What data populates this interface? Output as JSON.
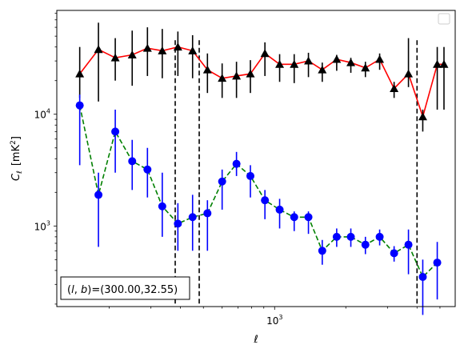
{
  "chart_data": {
    "type": "scatter",
    "title": "",
    "xlabel": "ℓ",
    "ylabel_main": "C",
    "ylabel_sub": "ℓ",
    "ylabel_unit_open": "[mK",
    "ylabel_unit_sup": "2",
    "ylabel_unit_close": "]",
    "xscale": "log",
    "yscale": "log",
    "xlim": [
      120,
      5800
    ],
    "ylim": [
      190,
      85000
    ],
    "xticks": [
      {
        "value": 1000,
        "base": "10",
        "exp": "3"
      }
    ],
    "yticks": [
      {
        "value": 1000,
        "base": "10",
        "exp": "3"
      },
      {
        "value": 10000,
        "base": "10",
        "exp": "4"
      }
    ],
    "grid": false,
    "legend": {
      "placement": "top-right",
      "entries": []
    },
    "vlines": [
      380,
      480,
      4000
    ],
    "annotation": "(l, b)=(300.00,32.55)",
    "annotation_parts": {
      "var_open": "(",
      "var_l": "l",
      "var_sep": ", ",
      "var_b": "b",
      "var_close": ")",
      "value": "=(300.00,32.55)"
    },
    "series": [
      {
        "marker": "triangle",
        "marker_color": "#000000",
        "line_color": "#ff0000",
        "line_style": "solid",
        "x": [
          150,
          180,
          212,
          250,
          290,
          335,
          390,
          450,
          520,
          600,
          690,
          790,
          910,
          1050,
          1210,
          1390,
          1590,
          1830,
          2100,
          2420,
          2780,
          3200,
          3680,
          4230,
          4870,
          5200
        ],
        "y": [
          23000,
          38000,
          32000,
          34000,
          39000,
          37000,
          40000,
          37000,
          25000,
          21000,
          22000,
          23000,
          35000,
          28000,
          28000,
          30000,
          25000,
          31000,
          29000,
          26000,
          31000,
          17000,
          23000,
          9500,
          28000,
          28000
        ],
        "err_low": [
          9000,
          25000,
          12000,
          16000,
          17000,
          16000,
          18000,
          16000,
          9500,
          7000,
          8000,
          7500,
          13000,
          8500,
          9000,
          8500,
          5500,
          6500,
          5500,
          4500,
          6000,
          3000,
          5500,
          2500,
          17000,
          17000
        ],
        "err_high": [
          17000,
          28000,
          16000,
          22000,
          21000,
          21000,
          15000,
          14000,
          10000,
          7500,
          7500,
          7500,
          9000,
          6500,
          6500,
          5500,
          4000,
          3000,
          3000,
          3500,
          4000,
          2500,
          25000,
          1500,
          12000,
          12000
        ]
      },
      {
        "marker": "circle",
        "marker_color": "#0000ff",
        "line_color": "#008000",
        "line_style": "dashed",
        "x": [
          150,
          180,
          212,
          250,
          290,
          335,
          390,
          450,
          520,
          600,
          690,
          790,
          910,
          1050,
          1210,
          1390,
          1590,
          1830,
          2100,
          2420,
          2780,
          3200,
          3680,
          4230,
          4870
        ],
        "y": [
          12000,
          1900,
          7000,
          3800,
          3200,
          1500,
          1050,
          1200,
          1300,
          2500,
          3600,
          2800,
          1700,
          1400,
          1200,
          1200,
          600,
          800,
          800,
          680,
          800,
          570,
          680,
          350,
          470
        ],
        "err_low": [
          8500,
          1250,
          4000,
          1700,
          1400,
          700,
          450,
          600,
          700,
          1100,
          800,
          1000,
          550,
          450,
          300,
          350,
          150,
          150,
          150,
          120,
          130,
          90,
          310,
          190,
          250
        ],
        "err_high": [
          3000,
          1100,
          4000,
          2100,
          1800,
          1500,
          550,
          700,
          400,
          700,
          1000,
          700,
          400,
          350,
          150,
          150,
          150,
          150,
          150,
          120,
          130,
          90,
          250,
          150,
          250
        ]
      }
    ]
  }
}
